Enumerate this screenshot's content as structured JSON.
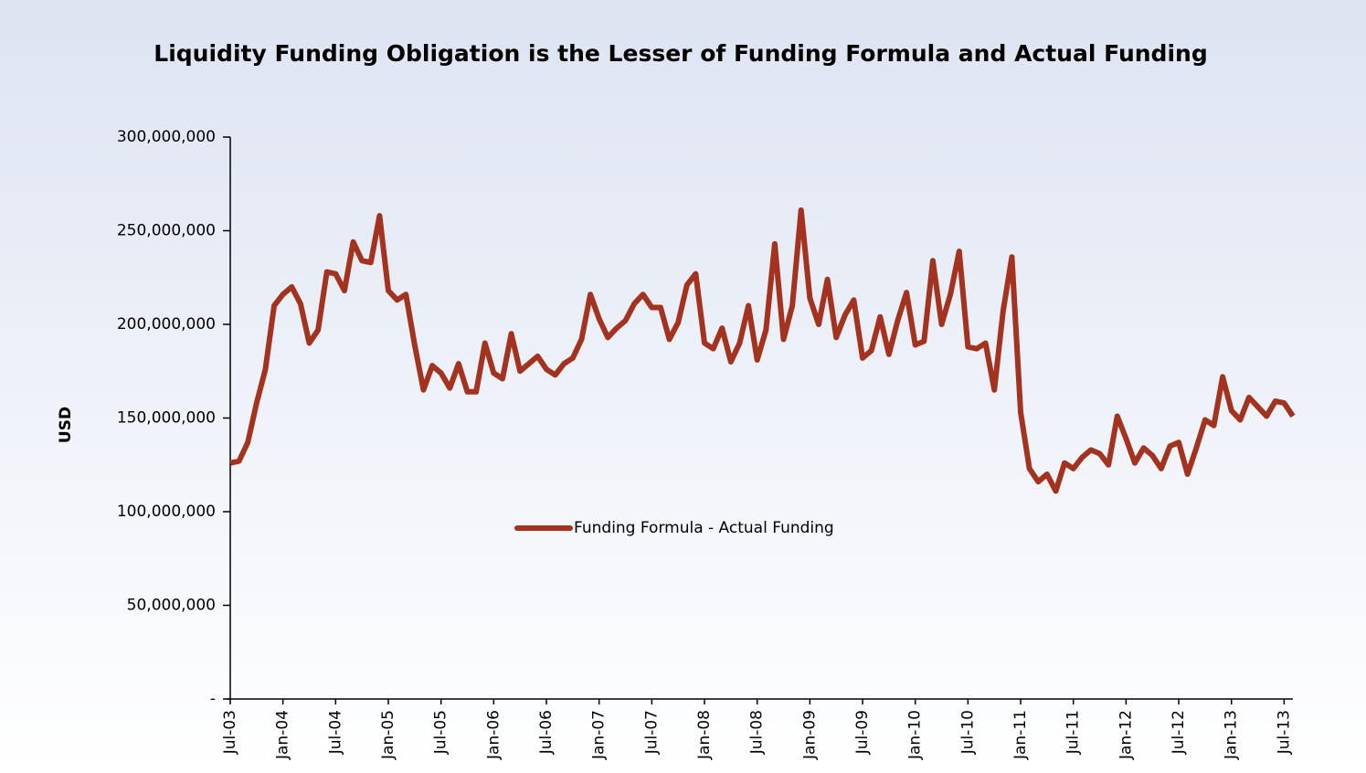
{
  "chart_data": {
    "type": "line",
    "title": "Liquidity Funding Obligation is the Lesser of Funding Formula and Actual Funding",
    "y_label": "USD",
    "categories": [
      "Jul-03",
      null,
      null,
      null,
      null,
      null,
      "Jan-04",
      null,
      null,
      null,
      null,
      null,
      "Jul-04",
      null,
      null,
      null,
      null,
      null,
      "Jan-05",
      null,
      null,
      null,
      null,
      null,
      "Jul-05",
      null,
      null,
      null,
      null,
      null,
      "Jan-06",
      null,
      null,
      null,
      null,
      null,
      "Jul-06",
      null,
      null,
      null,
      null,
      null,
      "Jan-07",
      null,
      null,
      null,
      null,
      null,
      "Jul-07",
      null,
      null,
      null,
      null,
      null,
      "Jan-08",
      null,
      null,
      null,
      null,
      null,
      "Jul-08",
      null,
      null,
      null,
      null,
      null,
      "Jan-09",
      null,
      null,
      null,
      null,
      null,
      "Jul-09",
      null,
      null,
      null,
      null,
      null,
      "Jan-10",
      null,
      null,
      null,
      null,
      null,
      "Jul-10",
      null,
      null,
      null,
      null,
      null,
      "Jan-11",
      null,
      null,
      null,
      null,
      null,
      "Jul-11",
      null,
      null,
      null,
      null,
      null,
      "Jan-12",
      null,
      null,
      null,
      null,
      null,
      "Jul-12",
      null,
      null,
      null,
      null,
      null,
      "Jan-13",
      null,
      null,
      null,
      null,
      null,
      "Jul-13",
      null
    ],
    "series": [
      {
        "name": "Funding Formula - Actual Funding",
        "color": "#a3321f",
        "values": [
          126000000,
          127000000,
          137000000,
          158000000,
          176000000,
          210000000,
          216000000,
          220000000,
          211000000,
          190000000,
          197000000,
          228000000,
          227000000,
          218000000,
          244000000,
          234000000,
          233000000,
          258000000,
          218000000,
          213000000,
          216000000,
          189000000,
          165000000,
          178000000,
          174000000,
          166000000,
          179000000,
          164000000,
          164000000,
          190000000,
          174000000,
          171000000,
          195000000,
          175000000,
          179000000,
          183000000,
          176000000,
          173000000,
          179000000,
          182000000,
          192000000,
          216000000,
          203000000,
          193000000,
          198000000,
          202000000,
          211000000,
          216000000,
          209000000,
          209000000,
          192000000,
          201000000,
          221000000,
          227000000,
          190000000,
          187000000,
          198000000,
          180000000,
          190000000,
          210000000,
          181000000,
          197000000,
          243000000,
          192000000,
          210000000,
          261000000,
          214000000,
          200000000,
          224000000,
          193000000,
          205000000,
          213000000,
          182000000,
          186000000,
          204000000,
          184000000,
          202000000,
          217000000,
          189000000,
          191000000,
          234000000,
          200000000,
          216000000,
          239000000,
          188000000,
          187000000,
          190000000,
          165000000,
          207000000,
          236000000,
          153000000,
          123000000,
          116000000,
          120000000,
          111000000,
          126000000,
          123000000,
          129000000,
          133000000,
          131000000,
          125000000,
          151000000,
          139000000,
          126000000,
          134000000,
          130000000,
          123000000,
          135000000,
          137000000,
          120000000,
          134000000,
          149000000,
          146000000,
          172000000,
          154000000,
          149000000,
          161000000,
          156000000,
          151000000,
          159000000,
          158000000,
          151000000
        ]
      }
    ],
    "ylim": [
      0,
      300000000
    ],
    "yticks": [
      {
        "value": 0,
        "label": "-"
      },
      {
        "value": 50000000,
        "label": "50,000,000"
      },
      {
        "value": 100000000,
        "label": "100,000,000"
      },
      {
        "value": 150000000,
        "label": "150,000,000"
      },
      {
        "value": 200000000,
        "label": "200,000,000"
      },
      {
        "value": 250000000,
        "label": "250,000,000"
      },
      {
        "value": 300000000,
        "label": "300,000,000"
      }
    ],
    "grid": false
  }
}
